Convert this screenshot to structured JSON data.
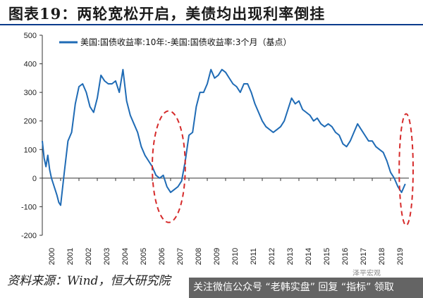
{
  "title": "图表19：两轮宽松开启，美债均出现利率倒挂",
  "source": "资料来源：Wind，恒大研究院",
  "watermark": "关注微信公众号 “老韩实盘” 回复 “指标” 领取",
  "corner_note": "泽平宏观",
  "colors": {
    "line": "#1f6bb5",
    "highlight": "#d62b2b",
    "title_rule": "#0b3c8c"
  },
  "chart_data": {
    "type": "line",
    "title": "",
    "xlabel": "",
    "ylabel": "",
    "series": [
      {
        "name": "美国:国债收益率:10年:-美国:国债收益率:3个月（基点）",
        "x": [
          2000.0,
          2000.1,
          2000.2,
          2000.3,
          2000.4,
          2000.5,
          2000.6,
          2000.7,
          2000.8,
          2000.9,
          2001.0,
          2001.2,
          2001.4,
          2001.6,
          2001.8,
          2002.0,
          2002.2,
          2002.4,
          2002.6,
          2002.8,
          2003.0,
          2003.2,
          2003.4,
          2003.6,
          2003.8,
          2004.0,
          2004.2,
          2004.4,
          2004.6,
          2004.8,
          2005.0,
          2005.2,
          2005.4,
          2005.6,
          2005.8,
          2006.0,
          2006.2,
          2006.4,
          2006.6,
          2006.8,
          2007.0,
          2007.2,
          2007.4,
          2007.6,
          2007.8,
          2008.0,
          2008.2,
          2008.4,
          2008.6,
          2008.8,
          2009.0,
          2009.2,
          2009.4,
          2009.6,
          2009.8,
          2010.0,
          2010.2,
          2010.4,
          2010.6,
          2010.8,
          2011.0,
          2011.2,
          2011.4,
          2011.6,
          2011.8,
          2012.0,
          2012.2,
          2012.4,
          2012.6,
          2012.8,
          2013.0,
          2013.2,
          2013.4,
          2013.6,
          2013.8,
          2014.0,
          2014.2,
          2014.4,
          2014.6,
          2014.8,
          2015.0,
          2015.2,
          2015.4,
          2015.6,
          2015.8,
          2016.0,
          2016.2,
          2016.4,
          2016.6,
          2016.8,
          2017.0,
          2017.2,
          2017.4,
          2017.6,
          2017.8,
          2018.0,
          2018.2,
          2018.4,
          2018.6,
          2018.8,
          2019.0,
          2019.2,
          2019.4,
          2019.6,
          2019.8
        ],
        "values": [
          130,
          70,
          40,
          80,
          30,
          0,
          -20,
          -40,
          -60,
          -85,
          -95,
          20,
          130,
          160,
          260,
          320,
          330,
          300,
          250,
          230,
          280,
          360,
          340,
          330,
          330,
          340,
          300,
          380,
          270,
          220,
          190,
          160,
          110,
          80,
          60,
          40,
          10,
          0,
          10,
          -30,
          -50,
          -40,
          -30,
          -10,
          60,
          150,
          160,
          250,
          300,
          300,
          330,
          380,
          350,
          360,
          380,
          370,
          350,
          330,
          320,
          300,
          330,
          330,
          300,
          260,
          230,
          200,
          180,
          170,
          160,
          170,
          180,
          200,
          240,
          280,
          260,
          270,
          240,
          230,
          220,
          200,
          210,
          190,
          180,
          190,
          180,
          160,
          150,
          120,
          110,
          130,
          160,
          190,
          170,
          150,
          130,
          130,
          110,
          100,
          90,
          60,
          20,
          0,
          -30,
          -50,
          -20
        ]
      }
    ],
    "xlim": [
      2000,
      2020
    ],
    "ylim": [
      -200,
      500
    ],
    "yticks": [
      -200,
      -100,
      0,
      100,
      200,
      300,
      400,
      500
    ],
    "xticks": [
      "2000",
      "2001",
      "2002",
      "2003",
      "2004",
      "2005",
      "2006",
      "2007",
      "2008",
      "2009",
      "2010",
      "2011",
      "2012",
      "2013",
      "2014",
      "2015",
      "2016",
      "2017",
      "2018",
      "2019"
    ],
    "grid": false,
    "legend": "top-left",
    "highlights": [
      {
        "x_center": 2006.9,
        "y_center": 40,
        "x_half": 0.9,
        "y_half": 195
      },
      {
        "x_center": 2019.85,
        "y_center": 30,
        "x_half": 0.38,
        "y_half": 195
      }
    ]
  }
}
